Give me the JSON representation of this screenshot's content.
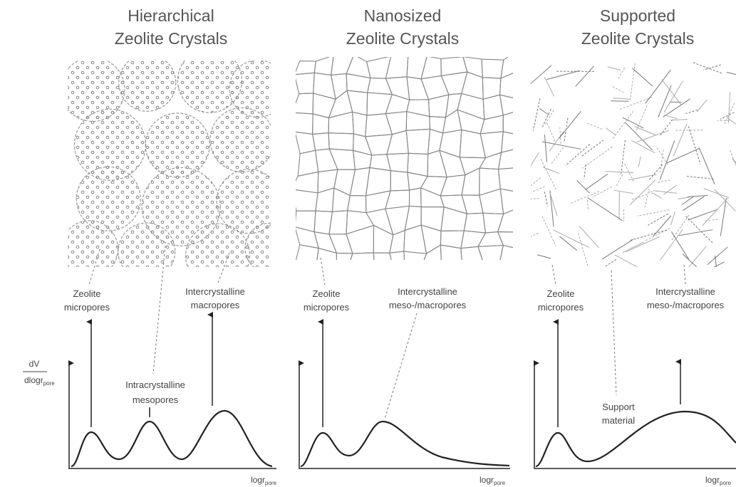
{
  "panels": [
    {
      "title": [
        "Hierarchical",
        "Zeolite Crystals"
      ],
      "labels": [
        {
          "lines": [
            "Zeolite",
            "micropores"
          ]
        },
        {
          "lines": [
            "Intercrystalline",
            "macropores"
          ]
        },
        {
          "lines": [
            "Intracrystalline",
            "mesopores"
          ]
        }
      ],
      "y_axis_label": {
        "numerator": "dV",
        "denominator": "dlogr",
        "subscript": "pore"
      },
      "x_axis_label": {
        "main": "logr",
        "subscript": "pore"
      }
    },
    {
      "title": [
        "Nanosized",
        "Zeolite Crystals"
      ],
      "labels": [
        {
          "lines": [
            "Zeolite",
            "micropores"
          ]
        },
        {
          "lines": [
            "Intercrystalline",
            "meso-/macropores"
          ]
        }
      ],
      "x_axis_label": {
        "main": "logr",
        "subscript": "pore"
      }
    },
    {
      "title": [
        "Supported",
        "Zeolite Crystals"
      ],
      "labels": [
        {
          "lines": [
            "Zeolite",
            "micropores"
          ]
        },
        {
          "lines": [
            "Intercrystalline",
            "meso-/macropores"
          ]
        },
        {
          "lines": [
            "Support",
            "material"
          ]
        }
      ],
      "x_axis_label": {
        "main": "logr",
        "subscript": "pore"
      }
    }
  ]
}
